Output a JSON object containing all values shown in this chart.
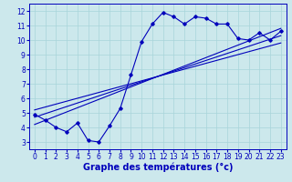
{
  "title": "",
  "xlabel": "Graphe des températures (°c)",
  "ylabel": "",
  "bg_color": "#cce8ec",
  "line_color": "#0000bb",
  "xlim": [
    -0.5,
    23.5
  ],
  "ylim": [
    2.5,
    12.5
  ],
  "xticks": [
    0,
    1,
    2,
    3,
    4,
    5,
    6,
    7,
    8,
    9,
    10,
    11,
    12,
    13,
    14,
    15,
    16,
    17,
    18,
    19,
    20,
    21,
    22,
    23
  ],
  "yticks": [
    3,
    4,
    5,
    6,
    7,
    8,
    9,
    10,
    11,
    12
  ],
  "data_x": [
    0,
    1,
    2,
    3,
    4,
    5,
    6,
    7,
    8,
    9,
    10,
    11,
    12,
    13,
    14,
    15,
    16,
    17,
    18,
    19,
    20,
    21,
    22,
    23
  ],
  "data_y": [
    4.9,
    4.5,
    4.0,
    3.7,
    4.3,
    3.1,
    3.0,
    4.1,
    5.3,
    7.6,
    9.9,
    11.1,
    11.9,
    11.6,
    11.1,
    11.6,
    11.5,
    11.1,
    11.1,
    10.1,
    10.0,
    10.5,
    10.0,
    10.6
  ],
  "trend1_x": [
    0,
    23
  ],
  "trend1_y": [
    4.2,
    10.8
  ],
  "trend2_x": [
    0,
    23
  ],
  "trend2_y": [
    4.7,
    10.3
  ],
  "trend3_x": [
    0,
    23
  ],
  "trend3_y": [
    5.2,
    9.8
  ],
  "grid_color": "#a8d4da",
  "tick_fontsize": 5.5,
  "xlabel_fontsize": 7.0
}
